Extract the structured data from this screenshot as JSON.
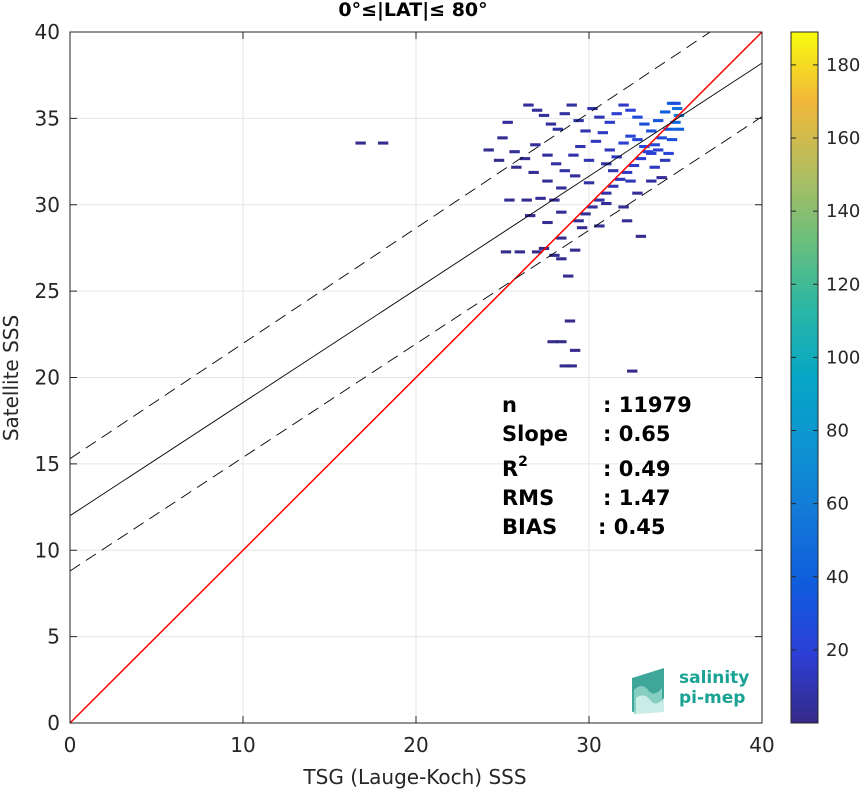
{
  "chart_data": {
    "type": "heatmap",
    "title": "0°≤|LAT|≤ 80°",
    "xlabel": "TSG (Lauge-Koch) SSS",
    "ylabel": "Satellite SSS",
    "xlim": [
      0,
      40
    ],
    "ylim": [
      0,
      40
    ],
    "xticks": [
      0,
      10,
      20,
      30,
      40
    ],
    "yticks": [
      0,
      5,
      10,
      15,
      20,
      25,
      30,
      35,
      40
    ],
    "grid": true,
    "lines": {
      "identity": {
        "points": [
          [
            0,
            0
          ],
          [
            40,
            40
          ]
        ],
        "color": "#ff0000"
      },
      "fit": {
        "points": [
          [
            0,
            12.0
          ],
          [
            40,
            38.2
          ]
        ],
        "color": "#000000"
      },
      "fit_upper": {
        "points": [
          [
            0,
            15.3
          ],
          [
            40,
            42.0
          ]
        ],
        "color": "#000000",
        "dash": true
      },
      "fit_lower": {
        "points": [
          [
            0,
            8.8
          ],
          [
            40,
            35.1
          ]
        ],
        "color": "#000000",
        "dash": true
      }
    },
    "density_cells": [
      [
        16.8,
        33.6,
        2
      ],
      [
        18.1,
        33.6,
        2
      ],
      [
        25.3,
        34.8,
        4
      ],
      [
        26.5,
        35.8,
        4
      ],
      [
        27.0,
        35.5,
        4
      ],
      [
        27.4,
        35.2,
        5
      ],
      [
        27.8,
        34.7,
        5
      ],
      [
        28.2,
        34.4,
        6
      ],
      [
        28.6,
        35.3,
        6
      ],
      [
        29.0,
        35.8,
        6
      ],
      [
        29.4,
        34.9,
        8
      ],
      [
        29.8,
        34.3,
        9
      ],
      [
        30.2,
        35.6,
        9
      ],
      [
        30.6,
        35.1,
        10
      ],
      [
        25.0,
        33.9,
        3
      ],
      [
        25.7,
        33.1,
        4
      ],
      [
        26.3,
        32.7,
        4
      ],
      [
        26.9,
        33.5,
        5
      ],
      [
        27.6,
        32.9,
        5
      ],
      [
        28.1,
        32.4,
        6
      ],
      [
        28.6,
        32.0,
        7
      ],
      [
        29.1,
        32.9,
        8
      ],
      [
        29.5,
        33.4,
        9
      ],
      [
        30.0,
        32.6,
        10
      ],
      [
        30.4,
        33.7,
        12
      ],
      [
        30.8,
        34.2,
        14
      ],
      [
        31.2,
        34.8,
        16
      ],
      [
        31.6,
        35.3,
        18
      ],
      [
        32.0,
        35.8,
        15
      ],
      [
        32.4,
        35.5,
        20
      ],
      [
        32.8,
        35.1,
        26
      ],
      [
        33.2,
        34.7,
        28
      ],
      [
        33.6,
        34.3,
        30
      ],
      [
        34.0,
        34.9,
        34
      ],
      [
        34.4,
        35.4,
        40
      ],
      [
        34.8,
        35.9,
        38
      ],
      [
        35.1,
        35.6,
        52
      ],
      [
        35.2,
        35.2,
        60
      ],
      [
        35.0,
        34.8,
        45
      ],
      [
        34.6,
        34.4,
        35
      ],
      [
        34.2,
        33.9,
        28
      ],
      [
        33.8,
        33.5,
        24
      ],
      [
        33.4,
        33.1,
        20
      ],
      [
        33.0,
        32.7,
        18
      ],
      [
        32.6,
        32.3,
        16
      ],
      [
        32.2,
        31.9,
        14
      ],
      [
        31.8,
        31.5,
        12
      ],
      [
        31.4,
        31.1,
        10
      ],
      [
        31.0,
        30.7,
        8
      ],
      [
        30.6,
        30.3,
        6
      ],
      [
        30.2,
        29.9,
        5
      ],
      [
        29.8,
        29.5,
        4
      ],
      [
        29.4,
        29.1,
        3
      ],
      [
        31.2,
        33.2,
        12
      ],
      [
        31.6,
        32.8,
        14
      ],
      [
        32.0,
        33.6,
        18
      ],
      [
        32.4,
        34.0,
        22
      ],
      [
        32.8,
        33.8,
        24
      ],
      [
        33.2,
        33.4,
        26
      ],
      [
        33.6,
        33.0,
        20
      ],
      [
        34.0,
        33.2,
        18
      ],
      [
        34.4,
        32.6,
        12
      ],
      [
        34.8,
        33.8,
        30
      ],
      [
        35.2,
        34.4,
        42
      ],
      [
        30.0,
        31.3,
        6
      ],
      [
        29.2,
        31.7,
        5
      ],
      [
        28.4,
        31.0,
        4
      ],
      [
        27.6,
        31.4,
        3
      ],
      [
        26.8,
        31.9,
        3
      ],
      [
        25.8,
        32.2,
        2
      ],
      [
        24.8,
        32.6,
        2
      ],
      [
        24.2,
        33.2,
        2
      ],
      [
        25.4,
        30.3,
        3
      ],
      [
        26.4,
        30.3,
        3
      ],
      [
        27.2,
        30.4,
        3
      ],
      [
        28.0,
        30.3,
        3
      ],
      [
        31.0,
        30.1,
        4
      ],
      [
        32.0,
        29.9,
        3
      ],
      [
        32.8,
        30.7,
        4
      ],
      [
        33.6,
        31.4,
        5
      ],
      [
        34.2,
        31.6,
        4
      ],
      [
        26.6,
        29.4,
        2
      ],
      [
        27.6,
        29.0,
        3
      ],
      [
        28.4,
        29.6,
        3
      ],
      [
        29.6,
        28.7,
        3
      ],
      [
        30.6,
        28.8,
        3
      ],
      [
        32.2,
        29.1,
        3
      ],
      [
        33.0,
        28.2,
        2
      ],
      [
        28.4,
        28.1,
        2
      ],
      [
        27.4,
        27.5,
        2
      ],
      [
        27.0,
        27.3,
        2
      ],
      [
        26.0,
        27.3,
        2
      ],
      [
        25.2,
        27.3,
        2
      ],
      [
        28.0,
        27.1,
        2
      ],
      [
        28.4,
        26.9,
        2
      ],
      [
        29.2,
        27.4,
        2
      ],
      [
        28.8,
        25.9,
        2
      ],
      [
        28.9,
        23.3,
        1
      ],
      [
        28.4,
        22.1,
        1
      ],
      [
        27.9,
        22.1,
        1
      ],
      [
        29.2,
        21.6,
        1
      ],
      [
        29.0,
        20.7,
        1
      ],
      [
        28.6,
        20.7,
        1
      ],
      [
        32.5,
        20.4,
        1
      ],
      [
        31.0,
        32.4,
        7
      ],
      [
        31.4,
        32.0,
        9
      ],
      [
        32.4,
        31.4,
        12
      ],
      [
        33.8,
        32.2,
        14
      ],
      [
        34.6,
        33.0,
        22
      ],
      [
        35.0,
        35.9,
        30
      ]
    ],
    "colorbar": {
      "colormap": "parula",
      "min": 0,
      "max": 189,
      "ticks": [
        20,
        40,
        60,
        80,
        100,
        120,
        140,
        160,
        180
      ]
    }
  },
  "stats": {
    "n_label": "n",
    "n_value": ": 11979",
    "slope_label": "Slope",
    "slope_value": ": 0.65",
    "r2_label": "R",
    "r2_sup": "2",
    "r2_value": ": 0.49",
    "rms_label": "RMS",
    "rms_value": ": 1.47",
    "bias_label": "BIAS",
    "bias_value": ": 0.45"
  },
  "logo": {
    "line1": "salinity",
    "line2": "pi-mep",
    "color": "#1aa394"
  }
}
